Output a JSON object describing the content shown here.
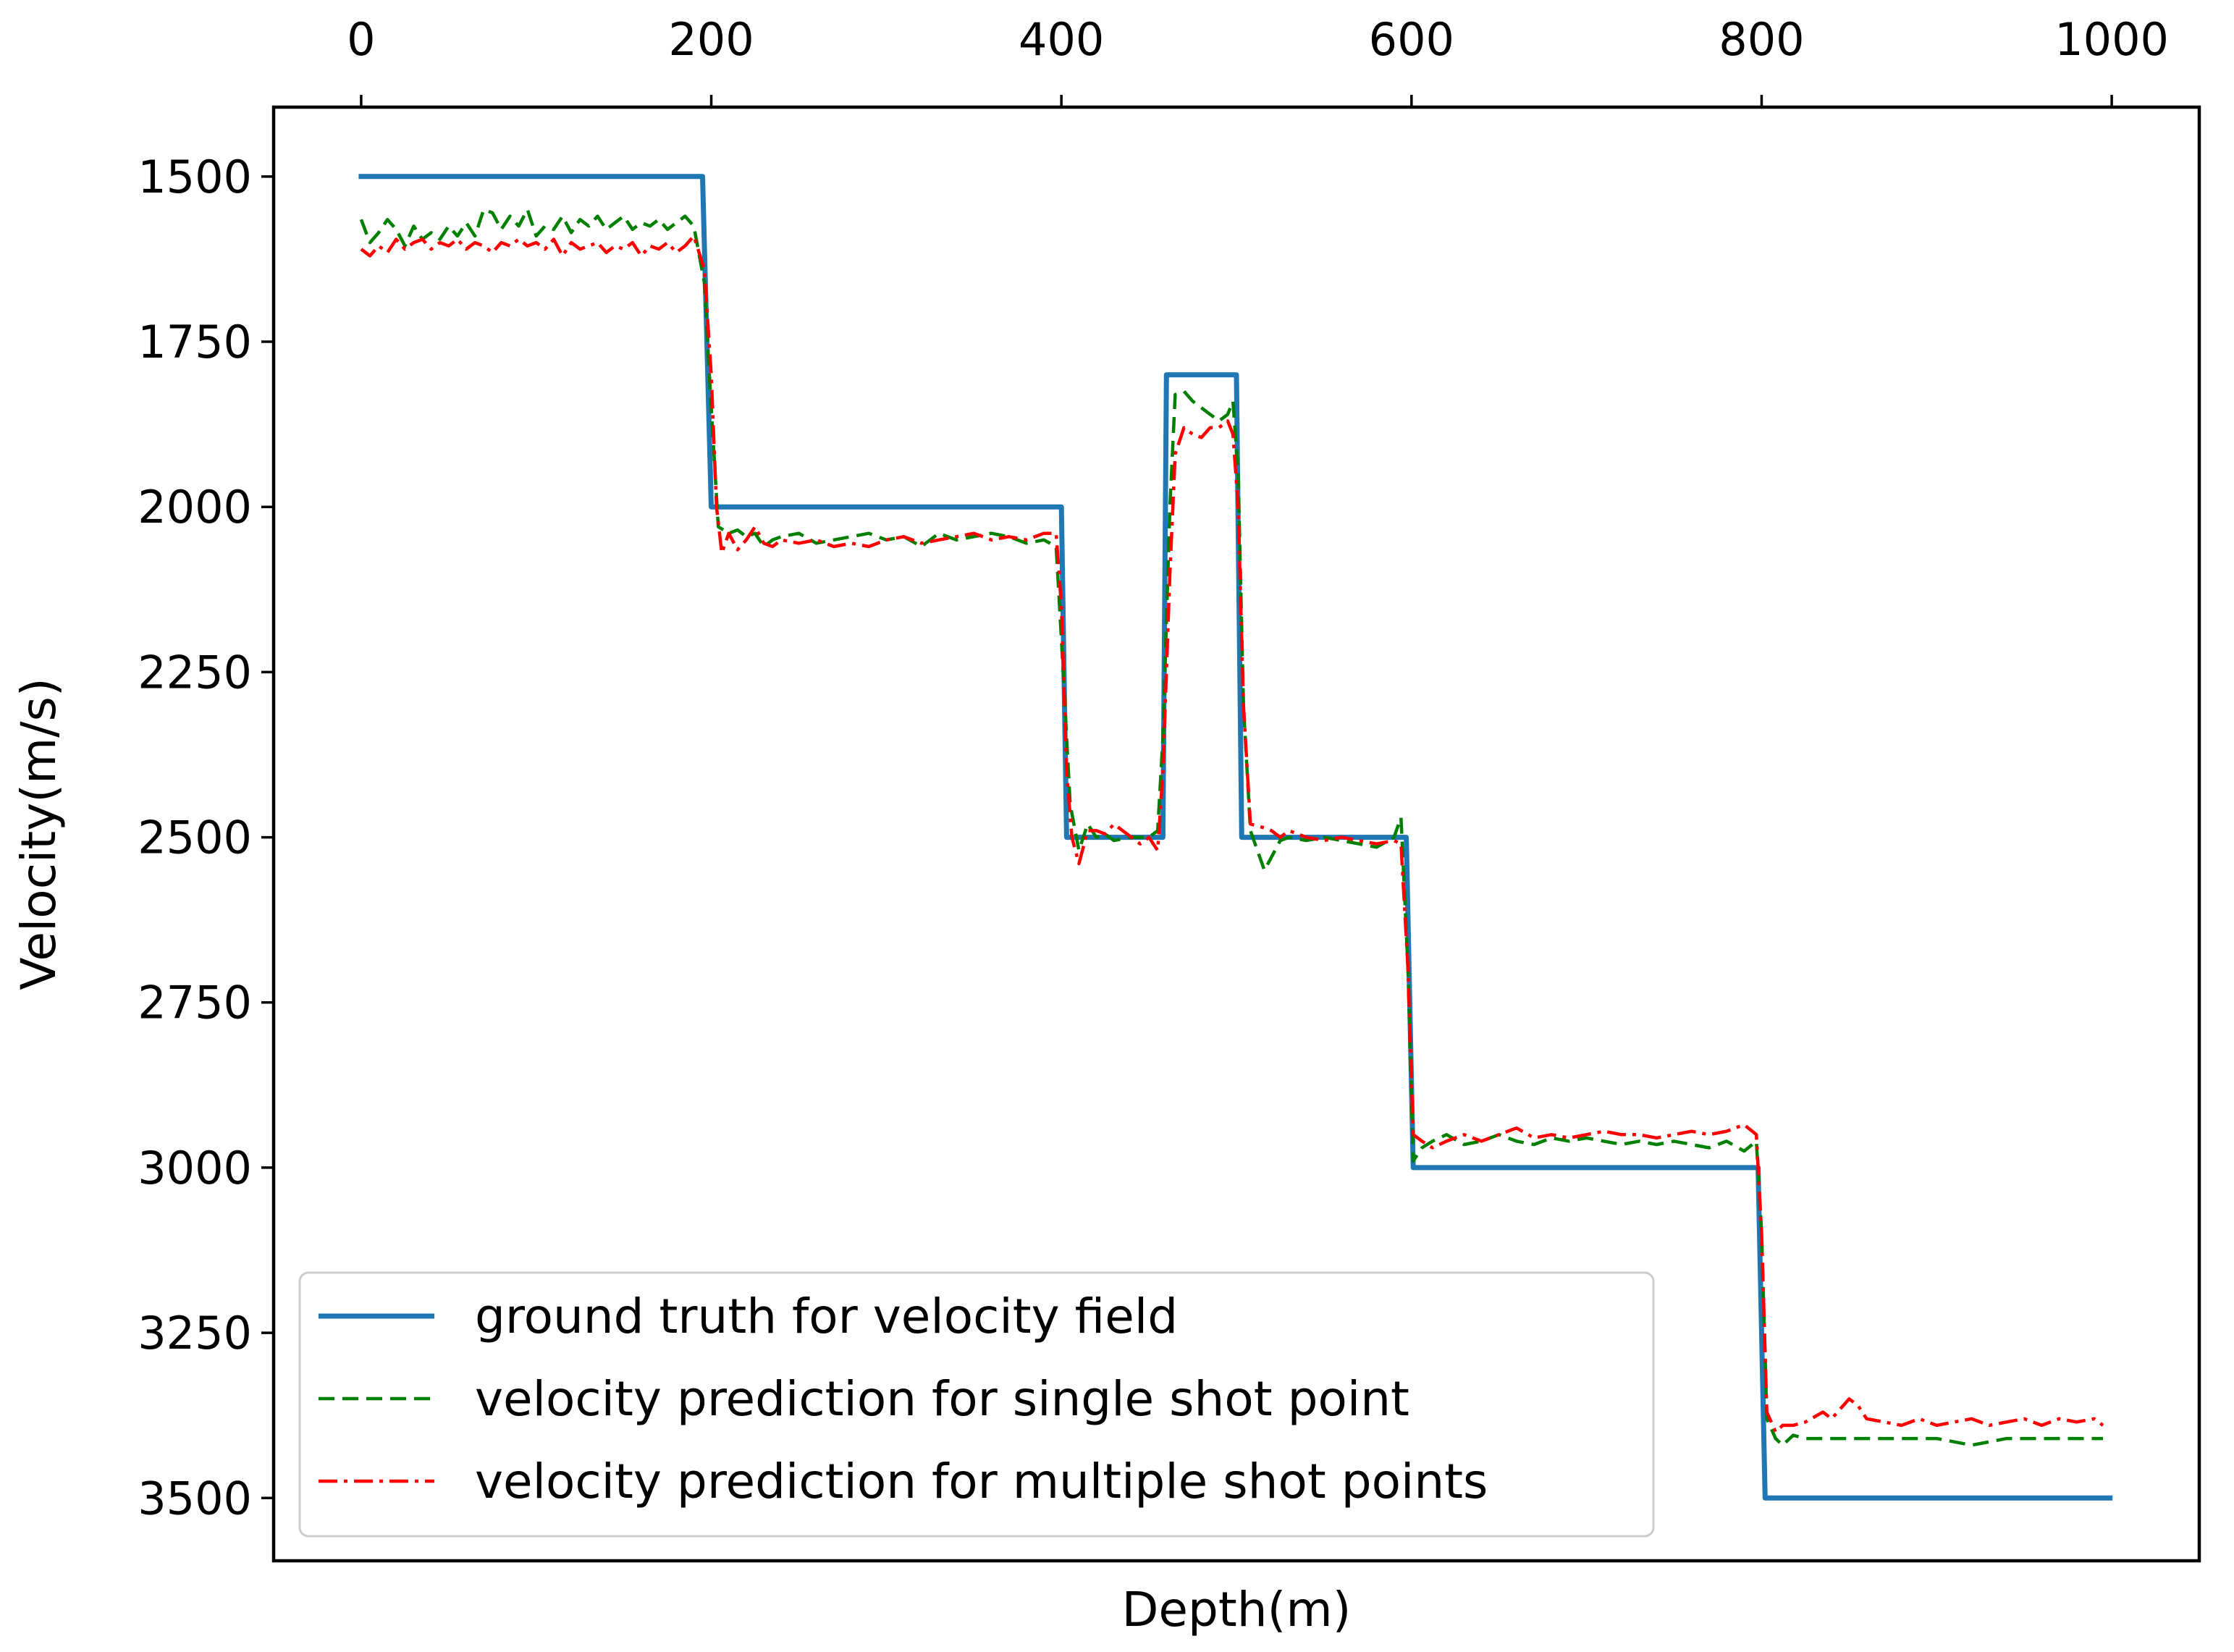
{
  "chart_data": {
    "type": "line",
    "title": "",
    "xlabel": "Depth(m)",
    "ylabel": "Velocity(m/s)",
    "x_axis_position": "top",
    "y_inverted": true,
    "xlim": [
      -50,
      1050
    ],
    "ylim": [
      1395,
      3595
    ],
    "xticks": [
      0,
      200,
      400,
      600,
      800,
      1000
    ],
    "xtick_labels": [
      "0",
      "200",
      "400",
      "600",
      "800",
      "1000"
    ],
    "yticks": [
      1500,
      1750,
      2000,
      2250,
      2500,
      2750,
      3000,
      3250,
      3500
    ],
    "ytick_labels": [
      "1500",
      "1750",
      "2000",
      "2250",
      "2500",
      "2750",
      "3000",
      "3250",
      "3500"
    ],
    "grid": false,
    "legend_position": "lower-left",
    "series": [
      {
        "name": "ground truth for velocity field",
        "color": "#1f77b4",
        "style": "solid",
        "points": [
          [
            0,
            1500
          ],
          [
            195,
            1500
          ],
          [
            200,
            2000
          ],
          [
            400,
            2000
          ],
          [
            403,
            2500
          ],
          [
            458,
            2500
          ],
          [
            460,
            1800
          ],
          [
            500,
            1800
          ],
          [
            503,
            2500
          ],
          [
            597,
            2500
          ],
          [
            601,
            3000
          ],
          [
            798,
            3000
          ],
          [
            802,
            3500
          ],
          [
            999,
            3500
          ]
        ]
      },
      {
        "name": "velocity prediction for single shot point",
        "color": "#008000",
        "style": "dashed",
        "points": [
          [
            0,
            1565
          ],
          [
            5,
            1600
          ],
          [
            10,
            1585
          ],
          [
            15,
            1565
          ],
          [
            20,
            1580
          ],
          [
            25,
            1605
          ],
          [
            30,
            1575
          ],
          [
            35,
            1595
          ],
          [
            40,
            1585
          ],
          [
            45,
            1595
          ],
          [
            50,
            1575
          ],
          [
            55,
            1590
          ],
          [
            60,
            1570
          ],
          [
            65,
            1590
          ],
          [
            70,
            1550
          ],
          [
            75,
            1555
          ],
          [
            80,
            1580
          ],
          [
            85,
            1560
          ],
          [
            90,
            1575
          ],
          [
            95,
            1550
          ],
          [
            100,
            1590
          ],
          [
            105,
            1575
          ],
          [
            110,
            1580
          ],
          [
            115,
            1560
          ],
          [
            120,
            1585
          ],
          [
            125,
            1565
          ],
          [
            130,
            1575
          ],
          [
            135,
            1560
          ],
          [
            140,
            1580
          ],
          [
            145,
            1570
          ],
          [
            150,
            1560
          ],
          [
            155,
            1580
          ],
          [
            160,
            1570
          ],
          [
            165,
            1575
          ],
          [
            170,
            1565
          ],
          [
            175,
            1580
          ],
          [
            180,
            1570
          ],
          [
            185,
            1560
          ],
          [
            190,
            1575
          ],
          [
            196,
            1660
          ],
          [
            200,
            1850
          ],
          [
            204,
            2030
          ],
          [
            210,
            2040
          ],
          [
            215,
            2035
          ],
          [
            220,
            2045
          ],
          [
            225,
            2040
          ],
          [
            230,
            2060
          ],
          [
            235,
            2050
          ],
          [
            240,
            2045
          ],
          [
            250,
            2040
          ],
          [
            260,
            2055
          ],
          [
            270,
            2050
          ],
          [
            280,
            2045
          ],
          [
            290,
            2040
          ],
          [
            300,
            2050
          ],
          [
            310,
            2045
          ],
          [
            320,
            2060
          ],
          [
            330,
            2040
          ],
          [
            340,
            2050
          ],
          [
            350,
            2045
          ],
          [
            360,
            2040
          ],
          [
            370,
            2045
          ],
          [
            380,
            2055
          ],
          [
            390,
            2050
          ],
          [
            397,
            2060
          ],
          [
            400,
            2200
          ],
          [
            405,
            2450
          ],
          [
            410,
            2520
          ],
          [
            415,
            2480
          ],
          [
            420,
            2500
          ],
          [
            425,
            2495
          ],
          [
            430,
            2505
          ],
          [
            440,
            2500
          ],
          [
            450,
            2500
          ],
          [
            455,
            2490
          ],
          [
            458,
            2350
          ],
          [
            462,
            2000
          ],
          [
            465,
            1830
          ],
          [
            470,
            1825
          ],
          [
            475,
            1840
          ],
          [
            480,
            1850
          ],
          [
            485,
            1860
          ],
          [
            490,
            1870
          ],
          [
            495,
            1860
          ],
          [
            498,
            1840
          ],
          [
            501,
            1950
          ],
          [
            504,
            2300
          ],
          [
            508,
            2490
          ],
          [
            512,
            2520
          ],
          [
            516,
            2550
          ],
          [
            520,
            2530
          ],
          [
            525,
            2505
          ],
          [
            530,
            2500
          ],
          [
            540,
            2505
          ],
          [
            550,
            2500
          ],
          [
            560,
            2505
          ],
          [
            570,
            2510
          ],
          [
            580,
            2515
          ],
          [
            590,
            2500
          ],
          [
            594,
            2470
          ],
          [
            598,
            2700
          ],
          [
            601,
            2990
          ],
          [
            606,
            2970
          ],
          [
            612,
            2960
          ],
          [
            620,
            2950
          ],
          [
            630,
            2965
          ],
          [
            640,
            2960
          ],
          [
            650,
            2950
          ],
          [
            660,
            2960
          ],
          [
            670,
            2965
          ],
          [
            680,
            2955
          ],
          [
            690,
            2960
          ],
          [
            700,
            2955
          ],
          [
            710,
            2960
          ],
          [
            720,
            2965
          ],
          [
            730,
            2960
          ],
          [
            740,
            2965
          ],
          [
            750,
            2960
          ],
          [
            760,
            2965
          ],
          [
            770,
            2970
          ],
          [
            780,
            2960
          ],
          [
            790,
            2975
          ],
          [
            797,
            2960
          ],
          [
            800,
            3100
          ],
          [
            803,
            3380
          ],
          [
            808,
            3410
          ],
          [
            812,
            3420
          ],
          [
            818,
            3405
          ],
          [
            825,
            3410
          ],
          [
            835,
            3410
          ],
          [
            850,
            3410
          ],
          [
            870,
            3410
          ],
          [
            900,
            3410
          ],
          [
            920,
            3420
          ],
          [
            940,
            3410
          ],
          [
            960,
            3410
          ],
          [
            980,
            3410
          ],
          [
            995,
            3410
          ]
        ]
      },
      {
        "name": "velocity prediction for multiple shot points",
        "color": "#ff0000",
        "style": "dashdot",
        "points": [
          [
            0,
            1610
          ],
          [
            5,
            1620
          ],
          [
            10,
            1605
          ],
          [
            15,
            1615
          ],
          [
            20,
            1595
          ],
          [
            25,
            1610
          ],
          [
            30,
            1600
          ],
          [
            35,
            1595
          ],
          [
            40,
            1610
          ],
          [
            45,
            1600
          ],
          [
            50,
            1605
          ],
          [
            55,
            1595
          ],
          [
            60,
            1610
          ],
          [
            65,
            1600
          ],
          [
            70,
            1605
          ],
          [
            75,
            1615
          ],
          [
            80,
            1600
          ],
          [
            85,
            1605
          ],
          [
            90,
            1595
          ],
          [
            95,
            1605
          ],
          [
            100,
            1600
          ],
          [
            105,
            1610
          ],
          [
            110,
            1595
          ],
          [
            115,
            1620
          ],
          [
            120,
            1600
          ],
          [
            125,
            1610
          ],
          [
            130,
            1605
          ],
          [
            135,
            1600
          ],
          [
            140,
            1615
          ],
          [
            145,
            1605
          ],
          [
            150,
            1610
          ],
          [
            155,
            1600
          ],
          [
            160,
            1620
          ],
          [
            165,
            1605
          ],
          [
            170,
            1610
          ],
          [
            175,
            1600
          ],
          [
            180,
            1615
          ],
          [
            185,
            1605
          ],
          [
            190,
            1590
          ],
          [
            196,
            1640
          ],
          [
            200,
            1800
          ],
          [
            203,
            2000
          ],
          [
            206,
            2070
          ],
          [
            210,
            2040
          ],
          [
            215,
            2065
          ],
          [
            220,
            2050
          ],
          [
            225,
            2030
          ],
          [
            230,
            2055
          ],
          [
            235,
            2060
          ],
          [
            240,
            2050
          ],
          [
            250,
            2055
          ],
          [
            260,
            2050
          ],
          [
            270,
            2060
          ],
          [
            280,
            2055
          ],
          [
            290,
            2060
          ],
          [
            300,
            2050
          ],
          [
            310,
            2045
          ],
          [
            320,
            2055
          ],
          [
            330,
            2050
          ],
          [
            340,
            2045
          ],
          [
            350,
            2040
          ],
          [
            360,
            2050
          ],
          [
            370,
            2045
          ],
          [
            380,
            2050
          ],
          [
            390,
            2040
          ],
          [
            397,
            2040
          ],
          [
            400,
            2150
          ],
          [
            403,
            2400
          ],
          [
            406,
            2500
          ],
          [
            410,
            2540
          ],
          [
            415,
            2490
          ],
          [
            420,
            2490
          ],
          [
            425,
            2495
          ],
          [
            430,
            2480
          ],
          [
            435,
            2490
          ],
          [
            440,
            2500
          ],
          [
            445,
            2510
          ],
          [
            450,
            2500
          ],
          [
            455,
            2520
          ],
          [
            458,
            2400
          ],
          [
            462,
            2100
          ],
          [
            465,
            1920
          ],
          [
            470,
            1880
          ],
          [
            475,
            1890
          ],
          [
            480,
            1895
          ],
          [
            485,
            1880
          ],
          [
            490,
            1880
          ],
          [
            495,
            1870
          ],
          [
            498,
            1890
          ],
          [
            501,
            2000
          ],
          [
            504,
            2300
          ],
          [
            508,
            2480
          ],
          [
            515,
            2485
          ],
          [
            520,
            2490
          ],
          [
            525,
            2500
          ],
          [
            530,
            2490
          ],
          [
            540,
            2500
          ],
          [
            550,
            2505
          ],
          [
            560,
            2500
          ],
          [
            570,
            2505
          ],
          [
            580,
            2510
          ],
          [
            590,
            2505
          ],
          [
            594,
            2510
          ],
          [
            598,
            2700
          ],
          [
            601,
            2950
          ],
          [
            606,
            2960
          ],
          [
            612,
            2970
          ],
          [
            620,
            2960
          ],
          [
            630,
            2950
          ],
          [
            640,
            2960
          ],
          [
            650,
            2950
          ],
          [
            660,
            2940
          ],
          [
            670,
            2955
          ],
          [
            680,
            2950
          ],
          [
            690,
            2955
          ],
          [
            700,
            2950
          ],
          [
            710,
            2945
          ],
          [
            720,
            2950
          ],
          [
            730,
            2950
          ],
          [
            740,
            2955
          ],
          [
            750,
            2950
          ],
          [
            760,
            2945
          ],
          [
            770,
            2950
          ],
          [
            780,
            2945
          ],
          [
            790,
            2935
          ],
          [
            797,
            2950
          ],
          [
            800,
            3100
          ],
          [
            803,
            3370
          ],
          [
            808,
            3400
          ],
          [
            812,
            3390
          ],
          [
            818,
            3390
          ],
          [
            825,
            3385
          ],
          [
            835,
            3370
          ],
          [
            840,
            3380
          ],
          [
            850,
            3350
          ],
          [
            855,
            3360
          ],
          [
            860,
            3380
          ],
          [
            870,
            3385
          ],
          [
            880,
            3390
          ],
          [
            890,
            3380
          ],
          [
            900,
            3390
          ],
          [
            910,
            3385
          ],
          [
            920,
            3380
          ],
          [
            930,
            3390
          ],
          [
            940,
            3385
          ],
          [
            950,
            3380
          ],
          [
            960,
            3390
          ],
          [
            970,
            3380
          ],
          [
            980,
            3385
          ],
          [
            990,
            3380
          ],
          [
            995,
            3390
          ]
        ]
      }
    ]
  }
}
